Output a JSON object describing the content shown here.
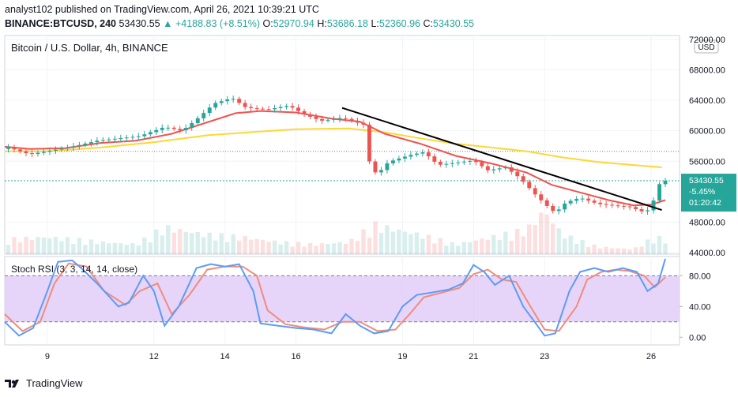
{
  "header": {
    "line1": "analyst102 published on TradingView.com, April 26, 2021 10:39:21 UTC",
    "symbol": "BINANCE:BTCUSD, 240",
    "last": "53430.55",
    "change": "+4188.83 (+8.51%)",
    "o_label": "O:",
    "o_value": "52970.94",
    "h_label": "H:",
    "h_value": "53686.18",
    "l_label": "L:",
    "l_value": "52360.96",
    "c_label": "C:",
    "c_value": "53430.55"
  },
  "footer": {
    "brand": "TradingView"
  },
  "colors": {
    "up": "#26a69a",
    "down": "#ef5350",
    "ma_fast": "#ef5350",
    "ma_slow": "#ffd633",
    "trendline": "#000000",
    "stoch_k": "#5b9cf6",
    "stoch_d": "#f08c7c",
    "stoch_band": "#e1c9f7"
  },
  "chart_data": [
    {
      "type": "candlestick",
      "title": "Bitcoin / U.S. Dollar, 4h, BINANCE",
      "currency": "USD",
      "y_ticks": [
        "72000.00",
        "68000.00",
        "64000.00",
        "60000.00",
        "56000.00",
        "48000.00",
        "44000.00"
      ],
      "y_tick_values": [
        72000,
        68000,
        64000,
        60000,
        56000,
        48000,
        44000
      ],
      "ylim": [
        43800,
        72500
      ],
      "x_ticks": [
        "9",
        "12",
        "14",
        "16",
        "19",
        "21",
        "23",
        "26"
      ],
      "x_tick_dates": [
        9,
        12,
        14,
        16,
        19,
        21,
        23,
        26
      ],
      "x_range_days": [
        7.8,
        26.8
      ],
      "last_price_label": "53430.55",
      "change_label": "-5.45%",
      "countdown_label": "01:20:42",
      "dotted_level": 57300,
      "grid": true,
      "anchors_close": [
        [
          7.9,
          57800
        ],
        [
          8.5,
          56900
        ],
        [
          9.2,
          57500
        ],
        [
          9.8,
          58000
        ],
        [
          10.4,
          58700
        ],
        [
          11.0,
          59000
        ],
        [
          11.6,
          59300
        ],
        [
          12.3,
          60500
        ],
        [
          12.8,
          60000
        ],
        [
          13.2,
          61500
        ],
        [
          13.7,
          63600
        ],
        [
          14.2,
          64300
        ],
        [
          14.6,
          63000
        ],
        [
          15.2,
          62800
        ],
        [
          15.8,
          63300
        ],
        [
          16.2,
          62200
        ],
        [
          16.7,
          61300
        ],
        [
          17.3,
          61700
        ],
        [
          17.9,
          60800
        ],
        [
          18.1,
          55000
        ],
        [
          18.3,
          54300
        ],
        [
          18.6,
          55900
        ],
        [
          19.2,
          56800
        ],
        [
          19.6,
          57200
        ],
        [
          20.0,
          55500
        ],
        [
          20.5,
          55800
        ],
        [
          21.0,
          56100
        ],
        [
          21.4,
          54800
        ],
        [
          21.9,
          55200
        ],
        [
          22.3,
          53800
        ],
        [
          22.7,
          51800
        ],
        [
          23.0,
          50400
        ],
        [
          23.3,
          49200
        ],
        [
          23.6,
          50600
        ],
        [
          24.0,
          51200
        ],
        [
          24.5,
          50400
        ],
        [
          24.9,
          50200
        ],
        [
          25.4,
          50000
        ],
        [
          25.8,
          49300
        ],
        [
          26.0,
          49800
        ],
        [
          26.2,
          52900
        ],
        [
          26.4,
          53430
        ]
      ],
      "ma_fast": [
        [
          7.8,
          57900
        ],
        [
          8.5,
          57600
        ],
        [
          9.5,
          57700
        ],
        [
          10.5,
          58400
        ],
        [
          11.5,
          58700
        ],
        [
          12.5,
          59600
        ],
        [
          13.5,
          61100
        ],
        [
          14.3,
          62300
        ],
        [
          15.0,
          62600
        ],
        [
          16.0,
          62400
        ],
        [
          17.0,
          61600
        ],
        [
          17.8,
          61200
        ],
        [
          18.5,
          59600
        ],
        [
          19.5,
          58300
        ],
        [
          20.5,
          56700
        ],
        [
          21.5,
          55700
        ],
        [
          22.5,
          54500
        ],
        [
          23.2,
          52900
        ],
        [
          24.0,
          51900
        ],
        [
          24.8,
          50900
        ],
        [
          25.5,
          50200
        ],
        [
          26.0,
          50300
        ],
        [
          26.4,
          50900
        ]
      ],
      "ma_slow": [
        [
          7.8,
          57300
        ],
        [
          9.0,
          57300
        ],
        [
          10.5,
          57800
        ],
        [
          12.0,
          58500
        ],
        [
          13.5,
          59400
        ],
        [
          15.0,
          59900
        ],
        [
          16.0,
          60200
        ],
        [
          17.5,
          60300
        ],
        [
          18.5,
          59800
        ],
        [
          19.5,
          59000
        ],
        [
          20.5,
          58300
        ],
        [
          21.5,
          57800
        ],
        [
          22.5,
          57300
        ],
        [
          23.5,
          56500
        ],
        [
          24.5,
          55900
        ],
        [
          25.5,
          55500
        ],
        [
          26.3,
          55200
        ]
      ],
      "trendline": [
        [
          17.3,
          63000
        ],
        [
          26.3,
          49600
        ]
      ],
      "volume_anchors": [
        [
          7.8,
          0.3
        ],
        [
          9.0,
          0.35
        ],
        [
          10.5,
          0.25
        ],
        [
          11.5,
          0.2
        ],
        [
          12.3,
          0.55
        ],
        [
          13.5,
          0.4
        ],
        [
          14.5,
          0.35
        ],
        [
          15.5,
          0.25
        ],
        [
          16.5,
          0.2
        ],
        [
          17.5,
          0.25
        ],
        [
          18.2,
          0.6
        ],
        [
          19.5,
          0.4
        ],
        [
          20.5,
          0.2
        ],
        [
          21.5,
          0.35
        ],
        [
          22.5,
          0.5
        ],
        [
          23.0,
          0.9
        ],
        [
          23.5,
          0.4
        ],
        [
          24.5,
          0.15
        ],
        [
          25.5,
          0.1
        ],
        [
          26.1,
          0.35
        ],
        [
          26.4,
          0.3
        ]
      ]
    },
    {
      "type": "line",
      "title": "Stoch RSI (3, 3, 14, 14, close)",
      "y_ticks": [
        "80.00",
        "40.00",
        "0.00"
      ],
      "y_tick_values": [
        80,
        40,
        0
      ],
      "ylim": [
        -10,
        105
      ],
      "upper_band": 80,
      "lower_band": 20,
      "k_anchors": [
        [
          7.8,
          20
        ],
        [
          8.2,
          2
        ],
        [
          8.6,
          12
        ],
        [
          9.0,
          60
        ],
        [
          9.3,
          98
        ],
        [
          9.7,
          100
        ],
        [
          10.0,
          88
        ],
        [
          10.4,
          70
        ],
        [
          11.0,
          40
        ],
        [
          11.3,
          45
        ],
        [
          11.7,
          80
        ],
        [
          12.0,
          60
        ],
        [
          12.3,
          15
        ],
        [
          12.7,
          40
        ],
        [
          13.2,
          90
        ],
        [
          13.6,
          95
        ],
        [
          14.0,
          92
        ],
        [
          14.4,
          95
        ],
        [
          14.8,
          60
        ],
        [
          15.0,
          18
        ],
        [
          15.5,
          15
        ],
        [
          16.0,
          12
        ],
        [
          16.5,
          10
        ],
        [
          17.0,
          5
        ],
        [
          17.4,
          30
        ],
        [
          17.8,
          15
        ],
        [
          18.2,
          5
        ],
        [
          18.6,
          8
        ],
        [
          19.0,
          40
        ],
        [
          19.4,
          55
        ],
        [
          19.8,
          58
        ],
        [
          20.3,
          62
        ],
        [
          20.7,
          70
        ],
        [
          21.0,
          94
        ],
        [
          21.3,
          85
        ],
        [
          21.6,
          68
        ],
        [
          22.0,
          80
        ],
        [
          22.4,
          40
        ],
        [
          22.8,
          15
        ],
        [
          23.0,
          2
        ],
        [
          23.3,
          5
        ],
        [
          23.7,
          60
        ],
        [
          24.0,
          85
        ],
        [
          24.4,
          90
        ],
        [
          24.8,
          85
        ],
        [
          25.2,
          90
        ],
        [
          25.6,
          85
        ],
        [
          25.9,
          60
        ],
        [
          26.2,
          70
        ],
        [
          26.4,
          102
        ]
      ],
      "d_anchors": [
        [
          7.8,
          30
        ],
        [
          8.3,
          8
        ],
        [
          8.8,
          20
        ],
        [
          9.2,
          70
        ],
        [
          9.6,
          96
        ],
        [
          10.1,
          92
        ],
        [
          10.6,
          60
        ],
        [
          11.2,
          42
        ],
        [
          11.6,
          60
        ],
        [
          12.1,
          70
        ],
        [
          12.5,
          30
        ],
        [
          13.0,
          55
        ],
        [
          13.5,
          88
        ],
        [
          14.0,
          92
        ],
        [
          14.5,
          92
        ],
        [
          14.9,
          80
        ],
        [
          15.2,
          35
        ],
        [
          15.7,
          17
        ],
        [
          16.2,
          13
        ],
        [
          16.8,
          10
        ],
        [
          17.3,
          20
        ],
        [
          17.8,
          20
        ],
        [
          18.3,
          8
        ],
        [
          18.8,
          10
        ],
        [
          19.2,
          30
        ],
        [
          19.6,
          52
        ],
        [
          20.1,
          58
        ],
        [
          20.6,
          64
        ],
        [
          21.0,
          82
        ],
        [
          21.4,
          88
        ],
        [
          21.8,
          75
        ],
        [
          22.2,
          72
        ],
        [
          22.6,
          40
        ],
        [
          23.0,
          10
        ],
        [
          23.4,
          8
        ],
        [
          23.9,
          40
        ],
        [
          24.2,
          75
        ],
        [
          24.6,
          85
        ],
        [
          25.0,
          88
        ],
        [
          25.4,
          86
        ],
        [
          25.8,
          80
        ],
        [
          26.1,
          65
        ],
        [
          26.4,
          78
        ]
      ]
    }
  ]
}
